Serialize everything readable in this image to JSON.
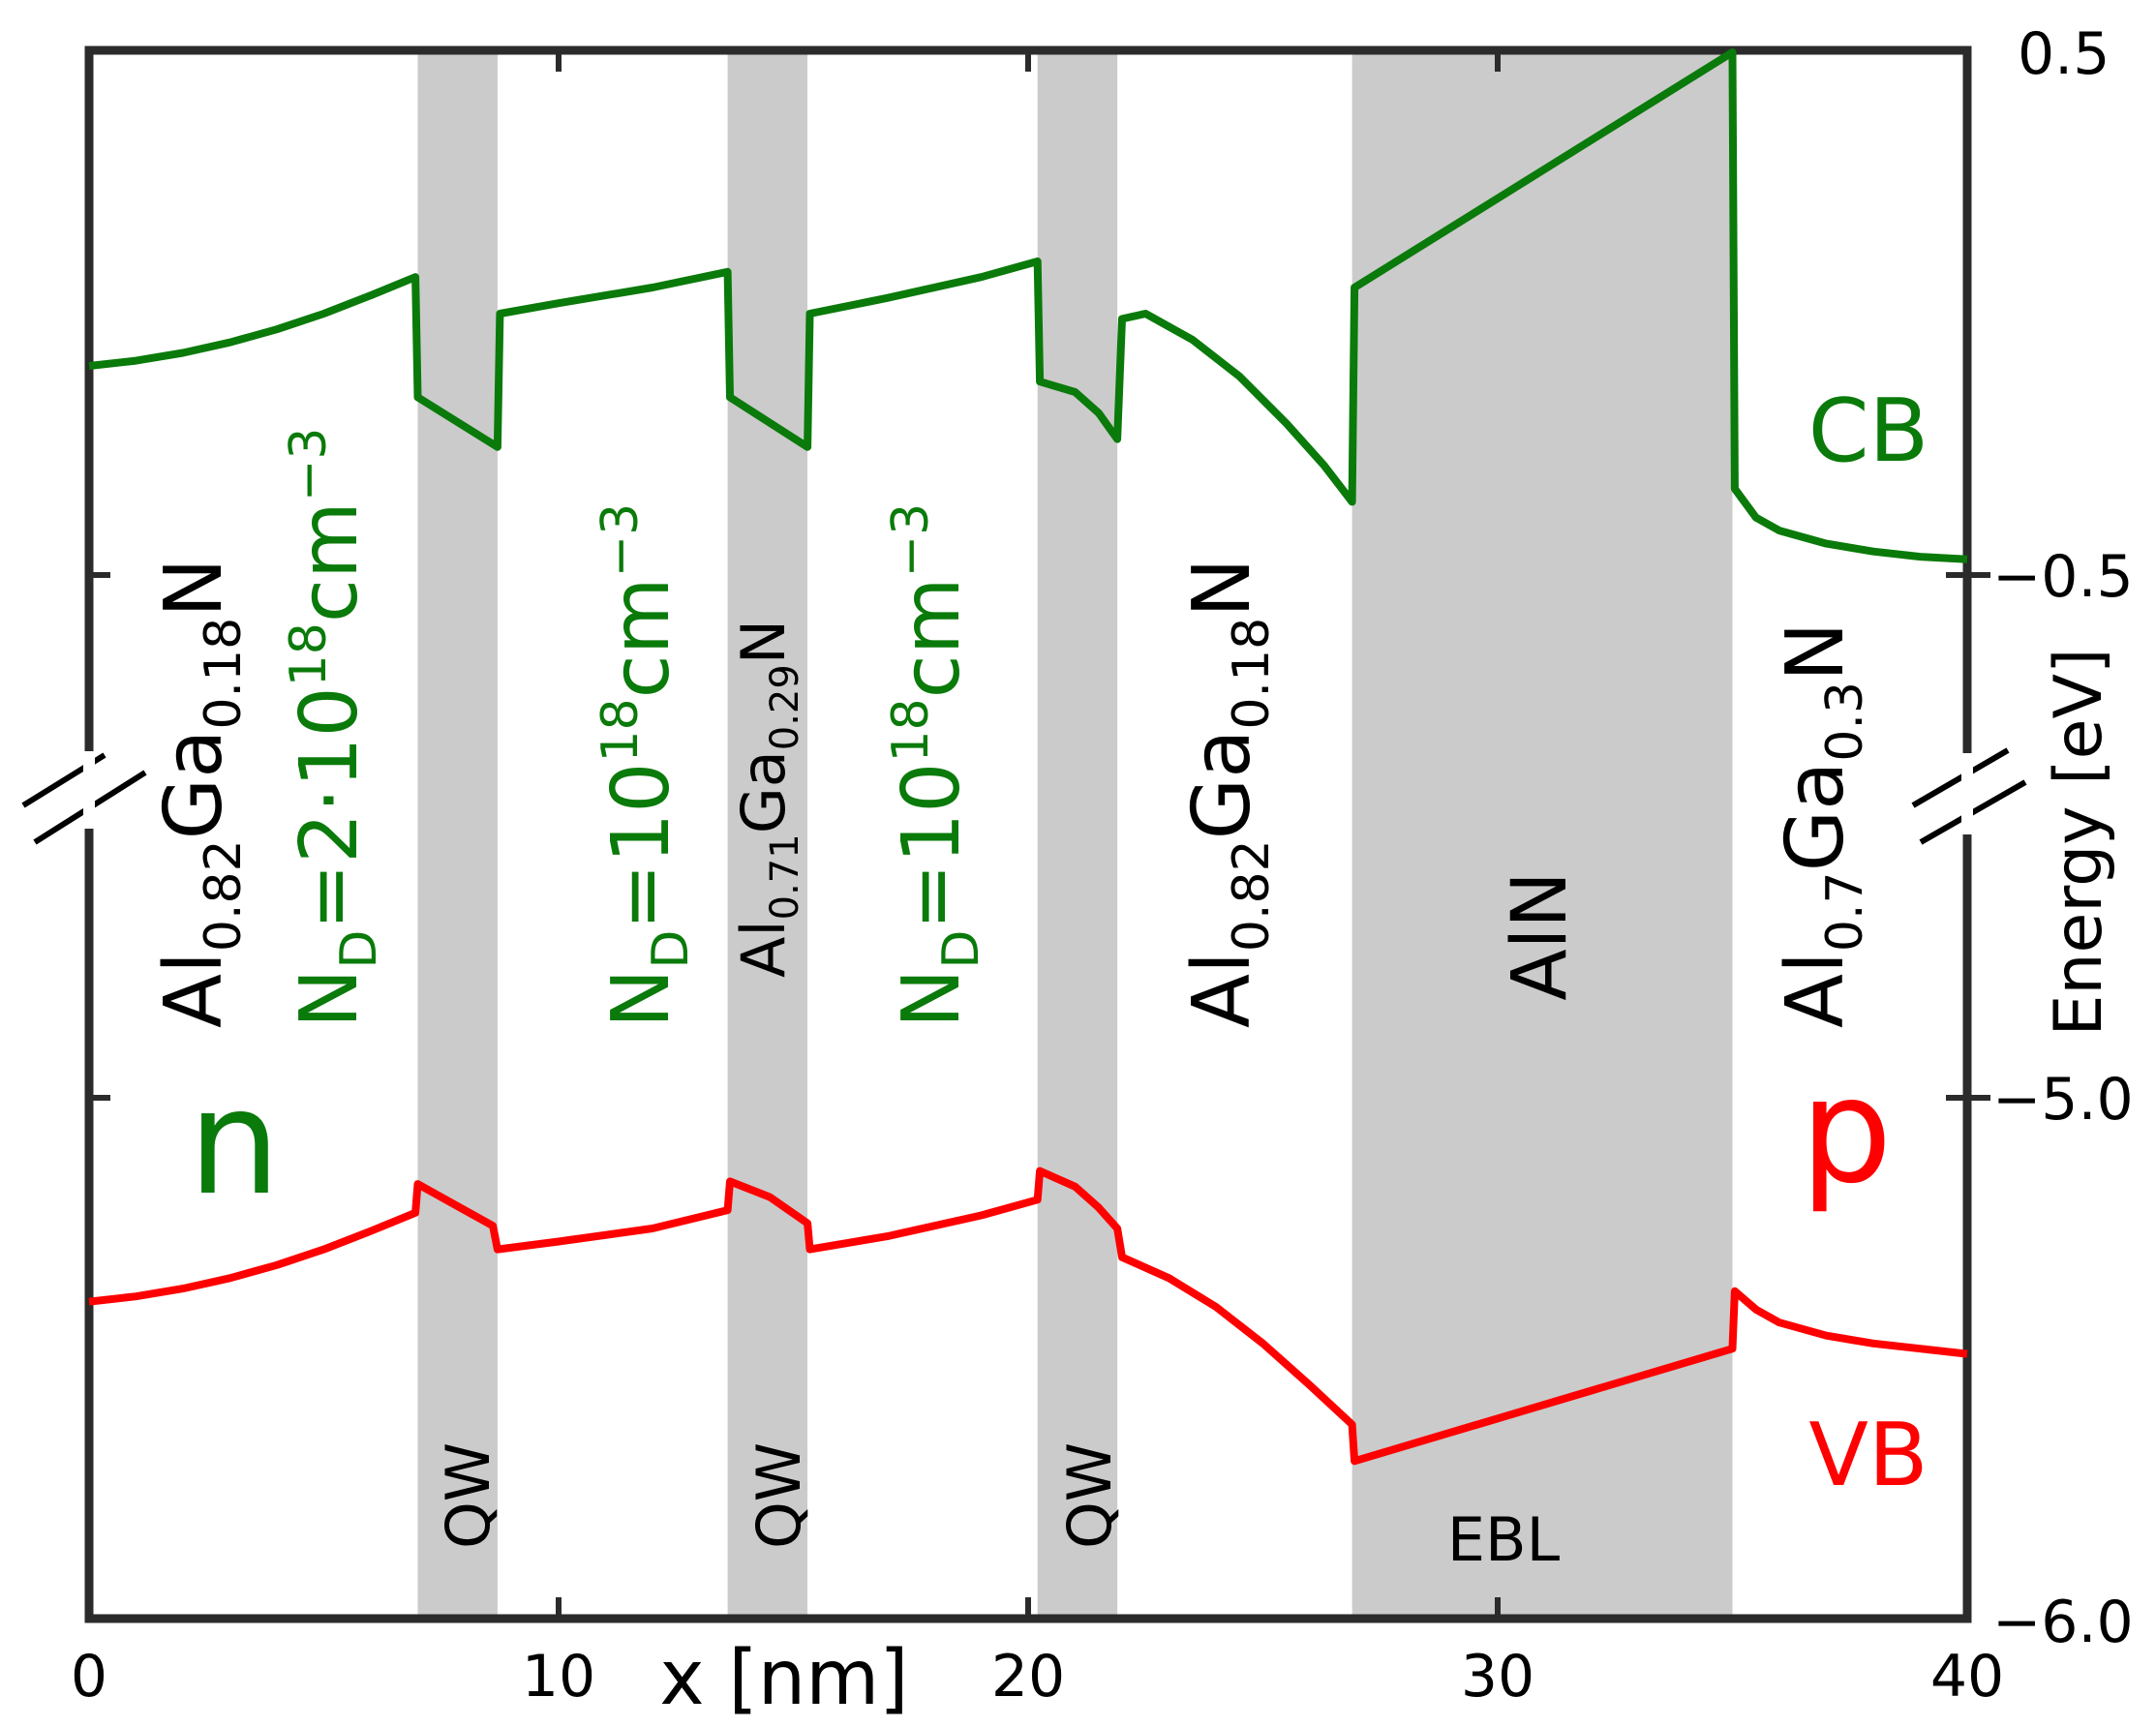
{
  "chart_data": {
    "type": "line",
    "title": "",
    "xlabel": "x [nm]",
    "ylabel": "Energy [eV]",
    "xlim": [
      0,
      40
    ],
    "x_ticks": [
      "0",
      "10",
      "20",
      "30",
      "40"
    ],
    "y_ticks": [
      "0.5",
      "−0.5",
      "−5.0",
      "−6.0"
    ],
    "axis_break": true,
    "regions": [
      {
        "name": "QW",
        "x0": 7.0,
        "x1": 8.7
      },
      {
        "name": "QW",
        "x0": 13.6,
        "x1": 15.3
      },
      {
        "name": "QW",
        "x0": 20.2,
        "x1": 21.9
      },
      {
        "name": "EBL",
        "x0": 26.9,
        "x1": 35.0
      }
    ],
    "series": [
      {
        "name": "CB",
        "color": "#0a7a0a",
        "segment": "upper",
        "points": [
          [
            0.0,
            -0.1
          ],
          [
            1.0,
            -0.09
          ],
          [
            2.0,
            -0.075
          ],
          [
            3.0,
            -0.055
          ],
          [
            4.0,
            -0.03
          ],
          [
            5.0,
            0.0
          ],
          [
            6.0,
            0.035
          ],
          [
            6.95,
            0.07
          ],
          [
            7.0,
            -0.16
          ],
          [
            8.7,
            -0.255
          ],
          [
            8.75,
            0.0
          ],
          [
            10.0,
            0.02
          ],
          [
            12.0,
            0.05
          ],
          [
            13.6,
            0.08
          ],
          [
            13.65,
            -0.16
          ],
          [
            15.3,
            -0.255
          ],
          [
            15.35,
            -0.0
          ],
          [
            17.0,
            0.03
          ],
          [
            19.0,
            0.07
          ],
          [
            20.2,
            0.1
          ],
          [
            20.25,
            -0.13
          ],
          [
            21.0,
            -0.15
          ],
          [
            21.5,
            -0.19
          ],
          [
            21.9,
            -0.24
          ],
          [
            22.0,
            -0.01
          ],
          [
            22.5,
            0.0
          ],
          [
            23.5,
            -0.05
          ],
          [
            24.5,
            -0.12
          ],
          [
            25.5,
            -0.21
          ],
          [
            26.3,
            -0.29
          ],
          [
            26.9,
            -0.36
          ],
          [
            26.95,
            0.05
          ],
          [
            35.0,
            0.5
          ],
          [
            35.05,
            -0.335
          ],
          [
            35.5,
            -0.39
          ],
          [
            36.0,
            -0.415
          ],
          [
            37.0,
            -0.44
          ],
          [
            38.0,
            -0.455
          ],
          [
            39.0,
            -0.465
          ],
          [
            40.0,
            -0.47
          ]
        ]
      },
      {
        "name": "VB",
        "color": "#ff0000",
        "segment": "lower",
        "points": [
          [
            0.0,
            -5.39
          ],
          [
            1.0,
            -5.38
          ],
          [
            2.0,
            -5.365
          ],
          [
            3.0,
            -5.345
          ],
          [
            4.0,
            -5.32
          ],
          [
            5.0,
            -5.29
          ],
          [
            6.0,
            -5.255
          ],
          [
            6.95,
            -5.22
          ],
          [
            7.0,
            -5.165
          ],
          [
            8.0,
            -5.215
          ],
          [
            8.6,
            -5.245
          ],
          [
            8.7,
            -5.29
          ],
          [
            10.0,
            -5.275
          ],
          [
            12.0,
            -5.25
          ],
          [
            13.6,
            -5.215
          ],
          [
            13.65,
            -5.16
          ],
          [
            14.5,
            -5.19
          ],
          [
            15.3,
            -5.24
          ],
          [
            15.35,
            -5.29
          ],
          [
            17.0,
            -5.265
          ],
          [
            19.0,
            -5.225
          ],
          [
            20.2,
            -5.195
          ],
          [
            20.25,
            -5.14
          ],
          [
            21.0,
            -5.17
          ],
          [
            21.5,
            -5.21
          ],
          [
            21.9,
            -5.25
          ],
          [
            22.0,
            -5.305
          ],
          [
            23.0,
            -5.345
          ],
          [
            24.0,
            -5.4
          ],
          [
            25.0,
            -5.47
          ],
          [
            26.0,
            -5.55
          ],
          [
            26.9,
            -5.625
          ],
          [
            26.95,
            -5.695
          ],
          [
            35.0,
            -5.48
          ],
          [
            35.05,
            -5.37
          ],
          [
            35.5,
            -5.405
          ],
          [
            36.0,
            -5.43
          ],
          [
            37.0,
            -5.455
          ],
          [
            38.0,
            -5.47
          ],
          [
            39.0,
            -5.48
          ],
          [
            40.0,
            -5.49
          ]
        ]
      }
    ],
    "annotations": {
      "n_layer": "Al0.82Ga0.18N",
      "n_doping": "ND=2·1018cm−3",
      "qw_barrier_doping_1": "ND=1018cm−3",
      "qw_barrier_doping_2": "ND=1018cm−3",
      "barrier_layer": "Al0.71Ga0.29N",
      "spacer_layer": "Al0.82Ga0.18N",
      "ebl_layer": "AlN",
      "p_layer": "Al0.7Ga0.3N",
      "n_label": "n",
      "p_label": "p",
      "cb_label": "CB",
      "vb_label": "VB",
      "qw_label": "QW",
      "ebl_label": "EBL"
    }
  },
  "text": {
    "xlabel": "x [nm]",
    "ylabel": "Energy [eV]",
    "cb": "CB",
    "vb": "VB",
    "n": "n",
    "p": "p",
    "qw1": "QW",
    "qw2": "QW",
    "qw3": "QW",
    "ebl": "EBL",
    "aln": "AlN",
    "al": "Al",
    "ga": "Ga",
    "n_sym": "N",
    "nd_n": "N",
    "nd_d": "D",
    "x082": "0.82",
    "x018": "0.18",
    "x071": "0.71",
    "x029": "0.29",
    "x07": "0.7",
    "x03": "0.3",
    "eq2": "=2·10",
    "eq1": "=10",
    "exp18": "18",
    "cm": "cm",
    "expm3": "−3"
  },
  "colors": {
    "green": "#0a7a0a",
    "red": "#ff0000",
    "shade": "#cbcbcb",
    "axis": "#2b2b2b"
  }
}
